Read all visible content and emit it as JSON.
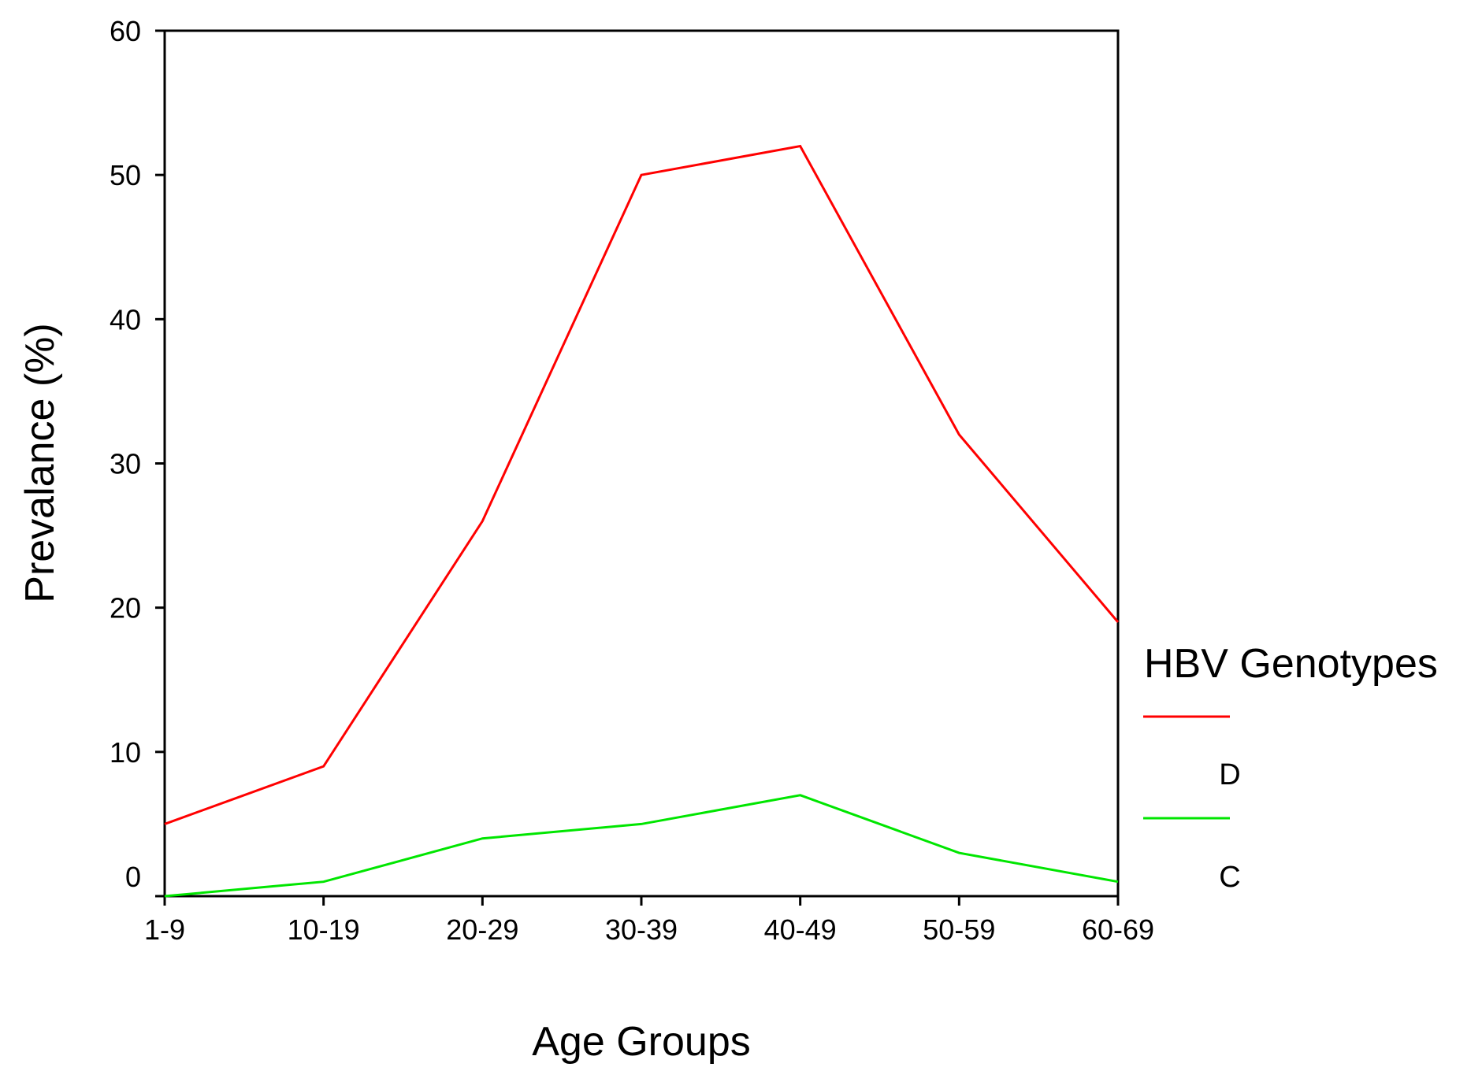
{
  "chart_data": {
    "type": "line",
    "title": "",
    "xlabel": "Age Groups",
    "ylabel": "Prevalance (%)",
    "categories": [
      "1-9",
      "10-19",
      "20-29",
      "30-39",
      "40-49",
      "50-59",
      "60-69"
    ],
    "ylim": [
      0,
      60
    ],
    "yticks": [
      0,
      10,
      20,
      30,
      40,
      50,
      60
    ],
    "grid": false,
    "legend": {
      "title": "HBV Genotypes",
      "position": "right"
    },
    "series": [
      {
        "name": "D",
        "color": "#ff0000",
        "values": [
          5,
          9,
          26,
          50,
          52,
          32,
          19
        ]
      },
      {
        "name": "C",
        "color": "#00e600",
        "values": [
          0,
          1,
          4,
          5,
          7,
          3,
          1
        ]
      }
    ]
  }
}
